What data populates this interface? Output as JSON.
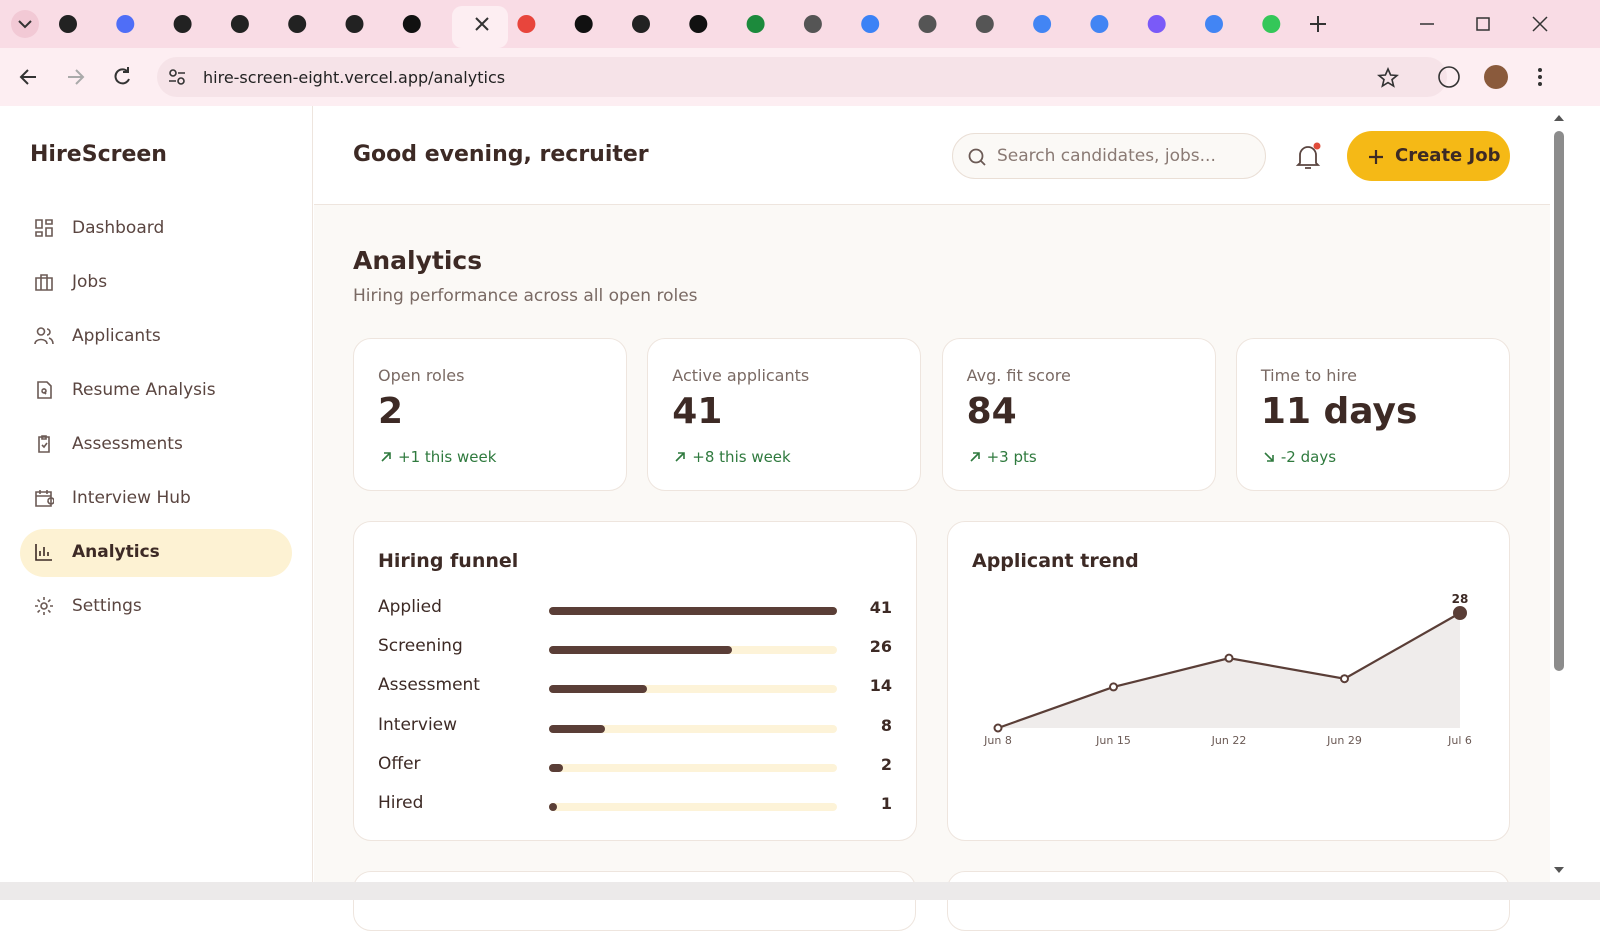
{
  "browser": {
    "url": "hire-screen-eight.vercel.app/analytics"
  },
  "sidebar": {
    "brand": "HireScreen",
    "nav": [
      {
        "label": "Dashboard",
        "active": false
      },
      {
        "label": "Jobs",
        "active": false
      },
      {
        "label": "Applicants",
        "active": false
      },
      {
        "label": "Resume Analysis",
        "active": false
      },
      {
        "label": "Assessments",
        "active": false
      },
      {
        "label": "Interview Hub",
        "active": false
      },
      {
        "label": "Analytics",
        "active": true
      },
      {
        "label": "Settings",
        "active": false
      }
    ]
  },
  "header": {
    "greeting": "Good evening, recruiter",
    "search_placeholder": "Search candidates, jobs...",
    "create_button": "Create Job"
  },
  "page": {
    "title": "Analytics",
    "subtitle": "Hiring performance across all open roles"
  },
  "stats": [
    {
      "label": "Open roles",
      "value": "2",
      "delta": "+1 this week",
      "trend": "up"
    },
    {
      "label": "Active applicants",
      "value": "41",
      "delta": "+8 this week",
      "trend": "up"
    },
    {
      "label": "Avg. fit score",
      "value": "84",
      "delta": "+3 pts",
      "trend": "up"
    },
    {
      "label": "Time to hire",
      "value": "11 days",
      "delta": "-2 days",
      "trend": "down"
    }
  ],
  "funnel": {
    "title": "Hiring funnel",
    "stages": [
      {
        "name": "Applied",
        "value": 41
      },
      {
        "name": "Screening",
        "value": 26
      },
      {
        "name": "Assessment",
        "value": 14
      },
      {
        "name": "Interview",
        "value": 8
      },
      {
        "name": "Offer",
        "value": 2
      },
      {
        "name": "Hired",
        "value": 1
      }
    ]
  },
  "trend": {
    "title": "Applicant trend",
    "categories": [
      "Jun 8",
      "Jun 15",
      "Jun 22",
      "Jun 29",
      "Jul 6"
    ],
    "values": [
      0,
      10,
      17,
      12,
      28
    ]
  }
}
